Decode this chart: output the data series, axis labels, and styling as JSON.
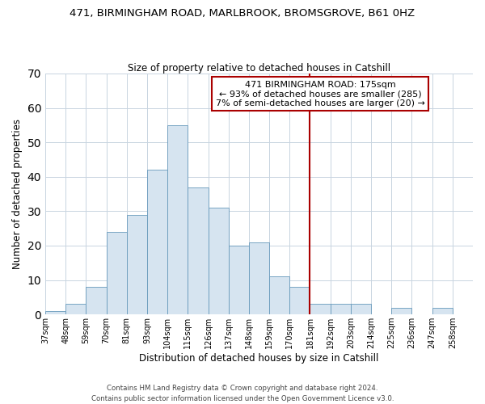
{
  "title": "471, BIRMINGHAM ROAD, MARLBROOK, BROMSGROVE, B61 0HZ",
  "subtitle": "Size of property relative to detached houses in Catshill",
  "xlabel": "Distribution of detached houses by size in Catshill",
  "ylabel": "Number of detached properties",
  "bar_labels": [
    "37sqm",
    "48sqm",
    "59sqm",
    "70sqm",
    "81sqm",
    "93sqm",
    "104sqm",
    "115sqm",
    "126sqm",
    "137sqm",
    "148sqm",
    "159sqm",
    "170sqm",
    "181sqm",
    "192sqm",
    "203sqm",
    "214sqm",
    "225sqm",
    "236sqm",
    "247sqm",
    "258sqm"
  ],
  "bar_values": [
    1,
    3,
    8,
    24,
    29,
    42,
    55,
    37,
    31,
    20,
    21,
    11,
    8,
    3,
    3,
    3,
    0,
    2,
    0,
    2,
    0
  ],
  "bar_color": "#d6e4f0",
  "bar_edge_color": "#6699bb",
  "vline_color": "#aa0000",
  "annotation_text": "471 BIRMINGHAM ROAD: 175sqm\n← 93% of detached houses are smaller (285)\n7% of semi-detached houses are larger (20) →",
  "annotation_box_color": "#ffffff",
  "annotation_box_edge": "#aa0000",
  "ylim": [
    0,
    70
  ],
  "yticks": [
    0,
    10,
    20,
    30,
    40,
    50,
    60,
    70
  ],
  "footer_line1": "Contains HM Land Registry data © Crown copyright and database right 2024.",
  "footer_line2": "Contains public sector information licensed under the Open Government Licence v3.0.",
  "bg_color": "#ffffff",
  "grid_color": "#c8d4e0"
}
